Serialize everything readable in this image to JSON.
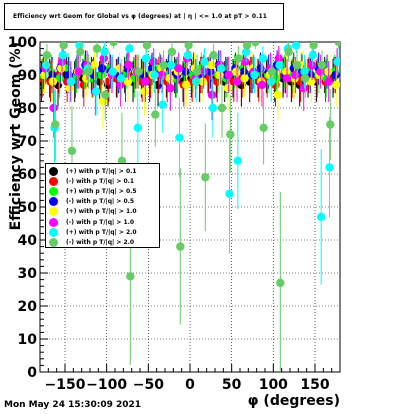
{
  "timestamp": "Mon May 24 15:30:09 2021",
  "chart_data": {
    "type": "scatter",
    "title": "Efficiency wrt Geom for Global vs φ (degrees) at | η | <= 1.0 at pT > 0.11",
    "xlabel": "φ (degrees)",
    "ylabel": "Efficiency wrt Geom (%)",
    "xlim": [
      -180,
      180
    ],
    "ylim": [
      0,
      100
    ],
    "x_ticks": [
      -150,
      -100,
      -50,
      0,
      50,
      100,
      150
    ],
    "y_ticks": [
      0,
      10,
      20,
      30,
      40,
      50,
      60,
      70,
      80,
      90,
      100
    ],
    "grid": true,
    "legend_position": "left-middle",
    "series": [
      {
        "name": "(+) with p T/|q| > 0.1",
        "color": "#000000",
        "x": [
          -175,
          -165,
          -155,
          -145,
          -135,
          -125,
          -115,
          -105,
          -95,
          -85,
          -75,
          -65,
          -55,
          -45,
          -35,
          -25,
          -15,
          -5,
          5,
          15,
          25,
          35,
          45,
          55,
          65,
          75,
          85,
          95,
          105,
          115,
          125,
          135,
          145,
          155,
          165,
          175
        ],
        "y": [
          88,
          89,
          87,
          90,
          88,
          89,
          90,
          88,
          87,
          89,
          90,
          88,
          89,
          88,
          87,
          89,
          90,
          88,
          89,
          88,
          90,
          89,
          88,
          89,
          87,
          88,
          89,
          90,
          88,
          89,
          88,
          87,
          89,
          88,
          90,
          89
        ]
      },
      {
        "name": "(-) with p T/|q| > 0.1",
        "color": "#ff0000",
        "x": [
          -175,
          -165,
          -155,
          -145,
          -135,
          -125,
          -115,
          -105,
          -95,
          -85,
          -75,
          -65,
          -55,
          -45,
          -35,
          -25,
          -15,
          -5,
          5,
          15,
          25,
          35,
          45,
          55,
          65,
          75,
          85,
          95,
          105,
          115,
          125,
          135,
          145,
          155,
          165,
          175
        ],
        "y": [
          89,
          88,
          90,
          88,
          89,
          87,
          89,
          90,
          88,
          89,
          88,
          90,
          88,
          89,
          90,
          88,
          89,
          87,
          88,
          90,
          89,
          88,
          90,
          88,
          89,
          90,
          88,
          89,
          87,
          90,
          89,
          88,
          90,
          89,
          88,
          90
        ]
      },
      {
        "name": "(+) with p T/|q| > 0.5",
        "color": "#00ff00",
        "x": [
          -175,
          -165,
          -155,
          -145,
          -135,
          -125,
          -115,
          -105,
          -95,
          -85,
          -75,
          -65,
          -55,
          -45,
          -35,
          -25,
          -15,
          -5,
          5,
          15,
          25,
          35,
          45,
          55,
          65,
          75,
          85,
          95,
          105,
          115,
          125,
          135,
          145,
          155,
          165,
          175
        ],
        "y": [
          90,
          91,
          89,
          92,
          90,
          91,
          89,
          90,
          92,
          90,
          91,
          89,
          90,
          91,
          92,
          90,
          89,
          91,
          90,
          92,
          91,
          90,
          89,
          91,
          92,
          90,
          91,
          90,
          89,
          91,
          90,
          92,
          91,
          90,
          89,
          91
        ]
      },
      {
        "name": "(-) with p T/|q| > 0.5",
        "color": "#0000ff",
        "x": [
          -175,
          -165,
          -155,
          -145,
          -135,
          -125,
          -115,
          -105,
          -95,
          -85,
          -75,
          -65,
          -55,
          -45,
          -35,
          -25,
          -15,
          -5,
          5,
          15,
          25,
          35,
          45,
          55,
          65,
          75,
          85,
          95,
          105,
          115,
          125,
          135,
          145,
          155,
          165,
          175
        ],
        "y": [
          91,
          90,
          92,
          90,
          91,
          93,
          90,
          92,
          91,
          90,
          92,
          91,
          90,
          92,
          91,
          93,
          90,
          91,
          92,
          90,
          91,
          93,
          90,
          92,
          91,
          90,
          92,
          91,
          93,
          90,
          92,
          91,
          90,
          92,
          91,
          90
        ]
      },
      {
        "name": "(+) with p T/|q| > 1.0",
        "color": "#ffff00",
        "x": [
          -175,
          -165,
          -155,
          -145,
          -135,
          -125,
          -115,
          -105,
          -95,
          -85,
          -75,
          -65,
          -55,
          -45,
          -35,
          -25,
          -15,
          -5,
          5,
          15,
          25,
          35,
          45,
          55,
          65,
          75,
          85,
          95,
          105,
          115,
          125,
          135,
          145,
          155,
          165,
          175
        ],
        "y": [
          90,
          88,
          92,
          86,
          91,
          89,
          93,
          82,
          90,
          92,
          88,
          91,
          85,
          90,
          92,
          89,
          91,
          87,
          92,
          88,
          93,
          90,
          86,
          91,
          89,
          92,
          88,
          90,
          84,
          91,
          89,
          93,
          88,
          90,
          91,
          87
        ]
      },
      {
        "name": "(-) with p T/|q| > 1.0",
        "color": "#ff00ff",
        "x": [
          -175,
          -165,
          -155,
          -145,
          -135,
          -125,
          -115,
          -105,
          -95,
          -85,
          -75,
          -65,
          -55,
          -45,
          -35,
          -25,
          -15,
          -5,
          5,
          15,
          25,
          35,
          45,
          55,
          65,
          75,
          85,
          95,
          105,
          115,
          125,
          135,
          145,
          155,
          165,
          175
        ],
        "y": [
          92,
          80,
          94,
          88,
          91,
          93,
          85,
          95,
          90,
          87,
          93,
          91,
          88,
          94,
          90,
          86,
          92,
          95,
          89,
          91,
          84,
          93,
          90,
          88,
          94,
          91,
          87,
          92,
          95,
          89,
          90,
          86,
          93,
          91,
          88,
          94
        ]
      },
      {
        "name": "(+) with p T/|q| > 2.0",
        "color": "#00ffff",
        "x": [
          -175,
          -165,
          -155,
          -145,
          -135,
          -125,
          -115,
          -105,
          -95,
          -85,
          -75,
          -65,
          -55,
          -45,
          -35,
          -25,
          -15,
          -5,
          5,
          15,
          25,
          35,
          45,
          55,
          65,
          75,
          85,
          95,
          105,
          115,
          125,
          135,
          145,
          155,
          165,
          175
        ],
        "y": [
          93,
          74,
          96,
          88,
          99,
          92,
          85,
          97,
          91,
          89,
          98,
          74,
          95,
          90,
          81,
          93,
          71,
          96,
          88,
          94,
          80,
          92,
          54,
          64,
          97,
          90,
          95,
          88,
          93,
          98,
          99,
          91,
          96,
          47,
          62,
          94
        ]
      },
      {
        "name": "(-) with p T/|q| > 2.0",
        "color": "#66cc66",
        "x": [
          -175,
          -165,
          -155,
          -145,
          -135,
          -125,
          -115,
          -105,
          -95,
          -85,
          -75,
          -65,
          -55,
          -45,
          -35,
          -25,
          -15,
          -5,
          5,
          15,
          25,
          35,
          45,
          55,
          65,
          75,
          85,
          95,
          105,
          115,
          125,
          135,
          145,
          155,
          165,
          175
        ],
        "y": [
          96,
          75,
          99,
          67,
          97,
          91,
          98,
          84,
          100,
          64,
          29,
          91,
          99,
          78,
          93,
          97,
          38,
          99,
          91,
          59,
          96,
          80,
          72,
          95,
          99,
          100,
          74,
          91,
          27,
          97,
          93,
          89,
          99,
          93,
          75,
          100
        ]
      }
    ]
  }
}
